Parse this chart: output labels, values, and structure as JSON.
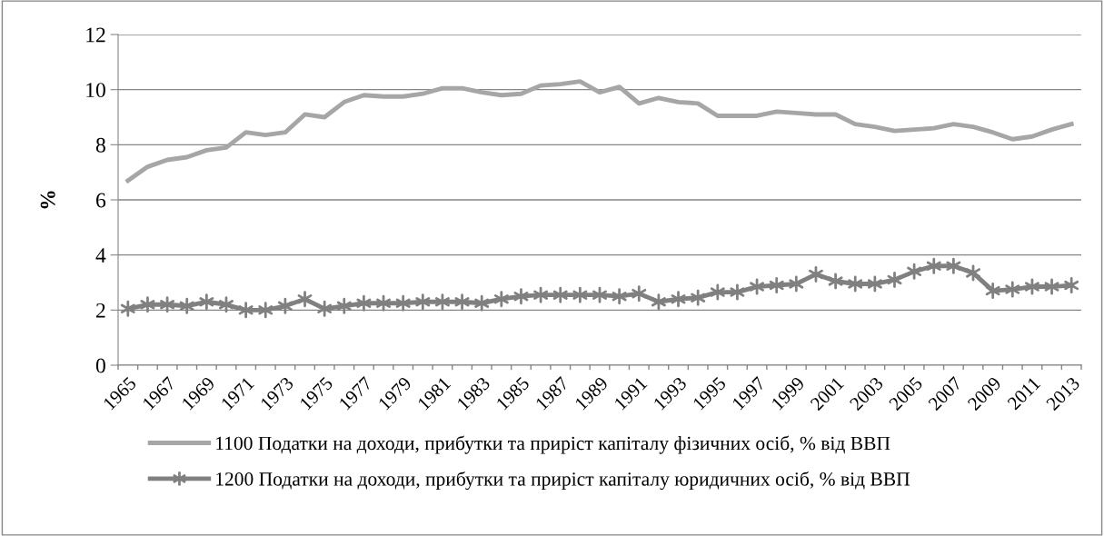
{
  "chart_data": {
    "type": "line",
    "ylabel": "%",
    "categories": [
      "1965",
      null,
      "1967",
      null,
      "1969",
      null,
      "1971",
      null,
      "1973",
      null,
      "1975",
      null,
      "1977",
      null,
      "1979",
      null,
      "1981",
      null,
      "1983",
      null,
      "1985",
      null,
      "1987",
      null,
      "1989",
      null,
      "1991",
      null,
      "1993",
      null,
      "1995",
      null,
      "1997",
      null,
      "1999",
      null,
      "2001",
      null,
      "2003",
      null,
      "2005",
      null,
      "2007",
      null,
      "2009",
      null,
      "2011",
      null,
      "2013"
    ],
    "series": [
      {
        "name": "1100 Податки на доходи, прибутки та приріст капіталу фізичних осіб, % від ВВП",
        "color": "#a6a6a6",
        "marker": "none",
        "values": [
          6.7,
          7.2,
          7.45,
          7.55,
          7.8,
          7.9,
          8.45,
          8.35,
          8.45,
          9.1,
          9.0,
          9.55,
          9.8,
          9.75,
          9.75,
          9.85,
          10.05,
          10.05,
          9.9,
          9.8,
          9.85,
          10.15,
          10.2,
          10.3,
          9.9,
          10.1,
          9.5,
          9.7,
          9.55,
          9.5,
          9.05,
          9.05,
          9.05,
          9.2,
          9.15,
          9.1,
          9.1,
          8.75,
          8.65,
          8.5,
          8.55,
          8.6,
          8.75,
          8.65,
          8.45,
          8.2,
          8.3,
          8.55,
          8.75
        ]
      },
      {
        "name": "1200 Податки на доходи, прибутки та приріст капіталу юридичних осіб, % від ВВП",
        "color": "#808080",
        "marker": "cross",
        "values": [
          2.05,
          2.2,
          2.2,
          2.15,
          2.3,
          2.2,
          2.0,
          2.0,
          2.15,
          2.4,
          2.05,
          2.15,
          2.25,
          2.25,
          2.25,
          2.3,
          2.3,
          2.3,
          2.25,
          2.4,
          2.5,
          2.55,
          2.55,
          2.55,
          2.55,
          2.5,
          2.6,
          2.3,
          2.4,
          2.45,
          2.65,
          2.65,
          2.85,
          2.9,
          2.95,
          3.3,
          3.05,
          2.95,
          2.95,
          3.1,
          3.4,
          3.6,
          3.6,
          3.35,
          2.7,
          2.75,
          2.85,
          2.85,
          2.9
        ]
      }
    ],
    "ylim": [
      0,
      12
    ],
    "yticks": [
      0,
      2,
      4,
      6,
      8,
      10,
      12
    ],
    "grid": "y",
    "legend": "bottom",
    "line_style": "solid"
  }
}
